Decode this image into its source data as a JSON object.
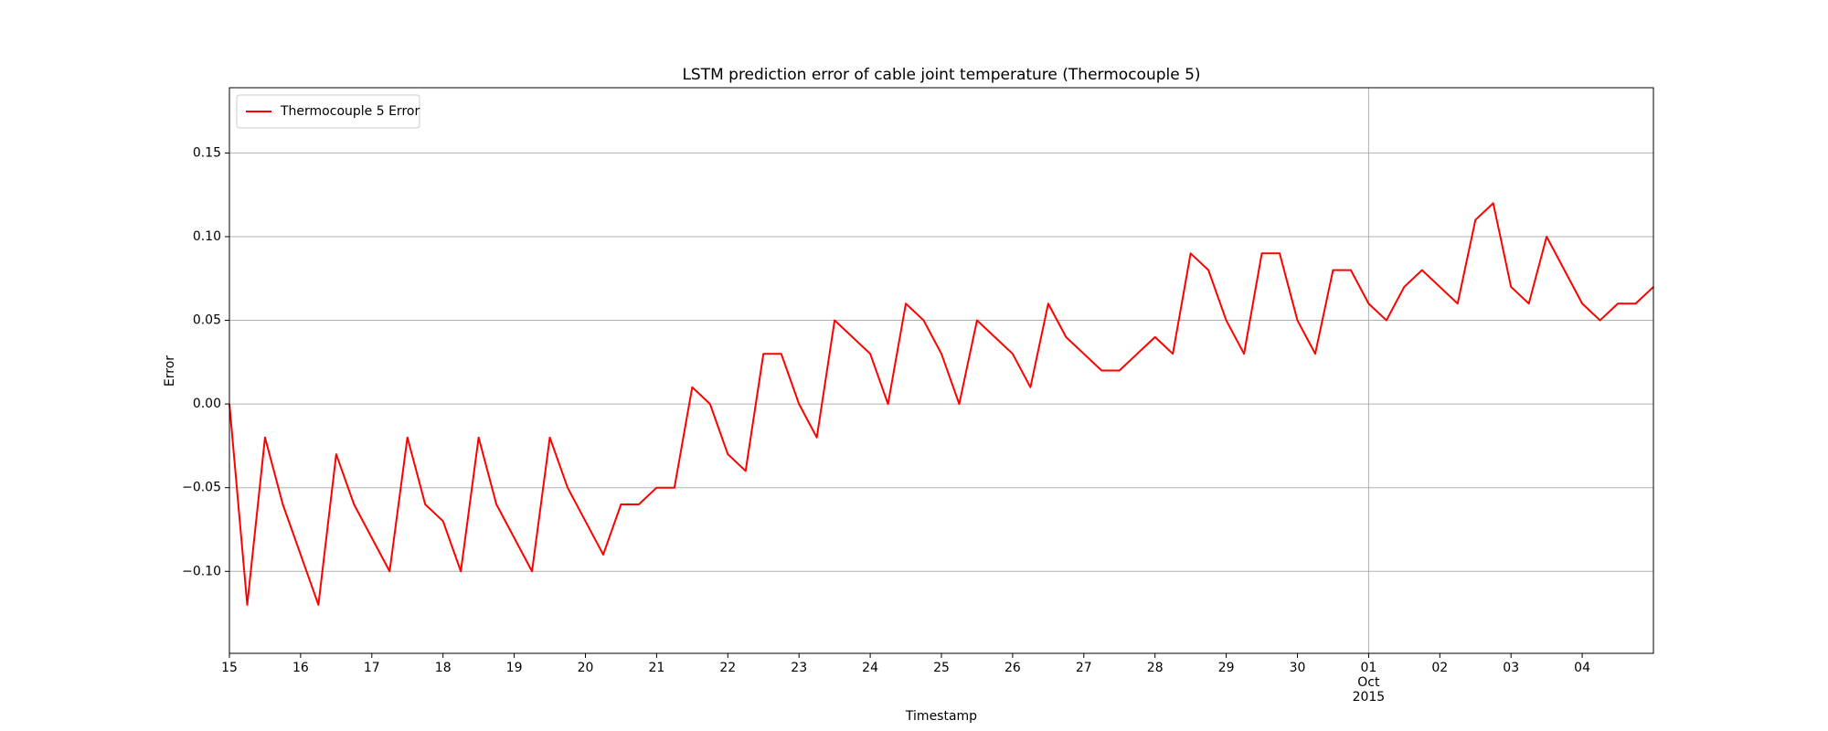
{
  "chart_data": {
    "type": "line",
    "title": "LSTM prediction error of cable joint temperature (Thermocouple 5)",
    "xlabel": "Timestamp",
    "ylabel": "Error",
    "x": [
      "2015-09-15T00:00",
      "2015-09-15T06:00",
      "2015-09-15T12:00",
      "2015-09-15T18:00",
      "2015-09-16T00:00",
      "2015-09-16T06:00",
      "2015-09-16T12:00",
      "2015-09-16T18:00",
      "2015-09-17T00:00",
      "2015-09-17T06:00",
      "2015-09-17T12:00",
      "2015-09-17T18:00",
      "2015-09-18T00:00",
      "2015-09-18T06:00",
      "2015-09-18T12:00",
      "2015-09-18T18:00",
      "2015-09-19T00:00",
      "2015-09-19T06:00",
      "2015-09-19T12:00",
      "2015-09-19T18:00",
      "2015-09-20T00:00",
      "2015-09-20T06:00",
      "2015-09-20T12:00",
      "2015-09-20T18:00",
      "2015-09-21T00:00",
      "2015-09-21T06:00",
      "2015-09-21T12:00",
      "2015-09-21T18:00",
      "2015-09-22T00:00",
      "2015-09-22T06:00",
      "2015-09-22T12:00",
      "2015-09-22T18:00",
      "2015-09-23T00:00",
      "2015-09-23T06:00",
      "2015-09-23T12:00",
      "2015-09-23T18:00",
      "2015-09-24T00:00",
      "2015-09-24T06:00",
      "2015-09-24T12:00",
      "2015-09-24T18:00",
      "2015-09-25T00:00",
      "2015-09-25T06:00",
      "2015-09-25T12:00",
      "2015-09-25T18:00",
      "2015-09-26T00:00",
      "2015-09-26T06:00",
      "2015-09-26T12:00",
      "2015-09-26T18:00",
      "2015-09-27T00:00",
      "2015-09-27T06:00",
      "2015-09-27T12:00",
      "2015-09-27T18:00",
      "2015-09-28T00:00",
      "2015-09-28T06:00",
      "2015-09-28T12:00",
      "2015-09-28T18:00",
      "2015-09-29T00:00",
      "2015-09-29T06:00",
      "2015-09-29T12:00",
      "2015-09-29T18:00",
      "2015-09-30T00:00",
      "2015-09-30T06:00",
      "2015-09-30T12:00",
      "2015-09-30T18:00",
      "2015-10-01T00:00",
      "2015-10-01T06:00",
      "2015-10-01T12:00",
      "2015-10-01T18:00",
      "2015-10-02T00:00",
      "2015-10-02T06:00",
      "2015-10-02T12:00",
      "2015-10-02T18:00",
      "2015-10-03T00:00",
      "2015-10-03T06:00",
      "2015-10-03T12:00",
      "2015-10-03T18:00",
      "2015-10-04T00:00",
      "2015-10-04T06:00",
      "2015-10-04T12:00",
      "2015-10-04T18:00",
      "2015-10-05T00:00"
    ],
    "series": [
      {
        "name": "Thermocouple 5 Error",
        "color": "#ff0000",
        "values": [
          0.0,
          -0.12,
          -0.02,
          -0.06,
          -0.09,
          -0.12,
          -0.03,
          -0.06,
          -0.08,
          -0.1,
          -0.02,
          -0.06,
          -0.07,
          -0.1,
          -0.02,
          -0.06,
          -0.08,
          -0.1,
          -0.02,
          -0.05,
          -0.07,
          -0.09,
          -0.06,
          -0.06,
          -0.05,
          -0.05,
          0.01,
          0.0,
          -0.03,
          -0.04,
          0.03,
          0.03,
          0.0,
          -0.02,
          0.05,
          0.04,
          0.03,
          0.0,
          0.06,
          0.05,
          0.03,
          0.0,
          0.05,
          0.04,
          0.03,
          0.01,
          0.06,
          0.04,
          0.03,
          0.02,
          0.02,
          0.03,
          0.04,
          0.03,
          0.09,
          0.08,
          0.05,
          0.03,
          0.09,
          0.09,
          0.05,
          0.03,
          0.08,
          0.08,
          0.06,
          0.05,
          0.07,
          0.08,
          0.07,
          0.06,
          0.11,
          0.12,
          0.07,
          0.06,
          0.1,
          0.08,
          0.06,
          0.05,
          0.06,
          0.06,
          0.07
        ]
      }
    ],
    "xlim": [
      "2015-09-15T00:00",
      "2015-10-05T00:00"
    ],
    "xticks": [
      {
        "value": "2015-09-15T00:00",
        "label": "15"
      },
      {
        "value": "2015-09-16T00:00",
        "label": "16"
      },
      {
        "value": "2015-09-17T00:00",
        "label": "17"
      },
      {
        "value": "2015-09-18T00:00",
        "label": "18"
      },
      {
        "value": "2015-09-19T00:00",
        "label": "19"
      },
      {
        "value": "2015-09-20T00:00",
        "label": "20"
      },
      {
        "value": "2015-09-21T00:00",
        "label": "21"
      },
      {
        "value": "2015-09-22T00:00",
        "label": "22"
      },
      {
        "value": "2015-09-23T00:00",
        "label": "23"
      },
      {
        "value": "2015-09-24T00:00",
        "label": "24"
      },
      {
        "value": "2015-09-25T00:00",
        "label": "25"
      },
      {
        "value": "2015-09-26T00:00",
        "label": "26"
      },
      {
        "value": "2015-09-27T00:00",
        "label": "27"
      },
      {
        "value": "2015-09-28T00:00",
        "label": "28"
      },
      {
        "value": "2015-09-29T00:00",
        "label": "29"
      },
      {
        "value": "2015-09-30T00:00",
        "label": "30"
      },
      {
        "value": "2015-10-01T00:00",
        "label": "01",
        "sublabels": [
          "Oct",
          "2015"
        ],
        "major": true
      },
      {
        "value": "2015-10-02T00:00",
        "label": "02"
      },
      {
        "value": "2015-10-03T00:00",
        "label": "03"
      },
      {
        "value": "2015-10-04T00:00",
        "label": "04"
      }
    ],
    "ylim": [
      -0.149,
      0.189
    ],
    "yticks": [
      {
        "value": -0.1,
        "label": "−0.10"
      },
      {
        "value": -0.05,
        "label": "−0.05"
      },
      {
        "value": 0,
        "label": "0.00"
      },
      {
        "value": 0.05,
        "label": "0.05"
      },
      {
        "value": 0.1,
        "label": "0.10"
      },
      {
        "value": 0.15,
        "label": "0.15"
      }
    ],
    "grid": true,
    "legend": "upper left"
  }
}
